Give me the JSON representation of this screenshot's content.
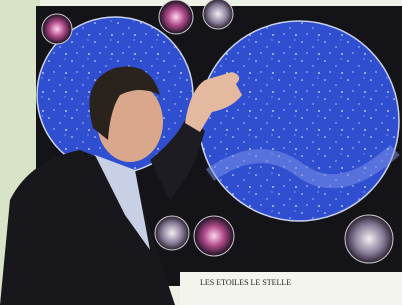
{
  "poster": {
    "caption": "LES ETOILES LE STELLE"
  }
}
